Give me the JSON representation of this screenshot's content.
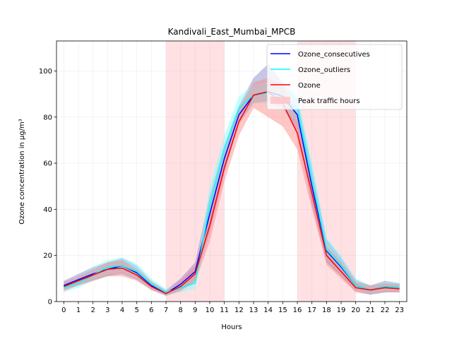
{
  "chart_data": {
    "type": "line",
    "title": "Kandivali_East_Mumbai_MPCB",
    "xlabel": "Hours",
    "ylabel": "Ozone concentration in µg/m³",
    "x": [
      0,
      1,
      2,
      3,
      4,
      5,
      6,
      7,
      8,
      9,
      10,
      11,
      12,
      13,
      14,
      15,
      16,
      17,
      18,
      19,
      20,
      21,
      22,
      23
    ],
    "xlim": [
      -0.5,
      23.5
    ],
    "ylim": [
      0,
      113
    ],
    "yticks": [
      0,
      20,
      40,
      60,
      80,
      100
    ],
    "grid": true,
    "legend_position": "top-right",
    "peak_traffic_spans": [
      [
        7,
        11
      ],
      [
        16,
        20
      ]
    ],
    "series": [
      {
        "name": "Ozone_consecutives",
        "color": "#0000ff",
        "values": [
          7,
          9.5,
          12,
          14,
          15.5,
          12.5,
          7,
          3.5,
          7.5,
          13,
          38,
          62,
          81,
          89.5,
          91,
          89,
          81,
          50,
          22,
          15,
          7,
          5,
          6.5,
          6
        ],
        "lower": [
          5,
          7,
          9,
          11,
          12,
          9.5,
          5,
          2.5,
          5,
          9,
          30,
          56,
          77,
          86,
          87,
          84,
          74,
          42,
          17,
          11,
          4.5,
          3,
          4,
          4
        ],
        "upper": [
          9,
          12,
          15,
          17,
          19,
          15.5,
          9,
          5,
          10,
          17,
          46,
          68,
          85,
          97,
          103,
          95,
          88,
          58,
          27,
          19,
          9.5,
          7,
          9,
          8
        ],
        "band_color": "#8080c8"
      },
      {
        "name": "Ozone_outliers",
        "color": "#00ffff",
        "values": [
          6,
          8,
          11.5,
          15,
          15.5,
          13,
          7.5,
          4,
          6,
          8,
          42,
          66,
          84,
          89.5,
          90.5,
          88,
          84,
          53,
          22.5,
          15.5,
          7,
          5,
          6.5,
          6
        ],
        "lower": [
          4,
          6,
          9,
          12,
          12.5,
          10,
          5.5,
          2.5,
          4,
          5.5,
          34,
          60,
          80,
          86,
          86,
          83,
          78,
          45,
          18,
          12,
          5,
          3,
          4.5,
          4.5
        ],
        "upper": [
          8,
          11,
          15,
          18,
          19,
          16.5,
          10,
          5.5,
          8,
          11,
          50,
          72,
          89,
          94,
          95,
          94,
          90,
          61,
          28,
          20,
          10,
          7,
          8.5,
          8
        ],
        "band_color": "#80ffff"
      },
      {
        "name": "Ozone",
        "color": "#ff0000",
        "values": [
          6.5,
          9,
          11.5,
          14,
          14.5,
          11.5,
          6.5,
          3.5,
          6.5,
          12,
          33,
          58,
          78,
          89.5,
          91,
          86,
          73,
          47,
          20,
          13,
          6,
          5,
          6,
          5.5
        ],
        "lower": [
          4.5,
          7,
          9,
          11,
          11,
          9,
          5,
          2.5,
          4.5,
          8.5,
          26,
          52,
          72,
          84,
          80,
          76,
          66,
          40,
          16,
          10,
          4,
          3,
          4,
          4
        ],
        "upper": [
          8.5,
          11,
          14,
          17,
          18,
          14,
          8.5,
          4.5,
          9,
          15.5,
          40,
          64,
          84,
          95,
          97,
          94,
          80,
          54,
          24,
          17,
          8.5,
          7,
          8,
          7.5
        ],
        "band_color": "#ff8080"
      }
    ],
    "legend": [
      {
        "label": "Ozone_consecutives",
        "kind": "line",
        "color": "#0000ff"
      },
      {
        "label": "Ozone_outliers",
        "kind": "line",
        "color": "#00ffff"
      },
      {
        "label": "Ozone",
        "kind": "line",
        "color": "#ff0000"
      },
      {
        "label": "Peak traffic hours",
        "kind": "patch",
        "color": "#ffc0c6"
      }
    ]
  }
}
